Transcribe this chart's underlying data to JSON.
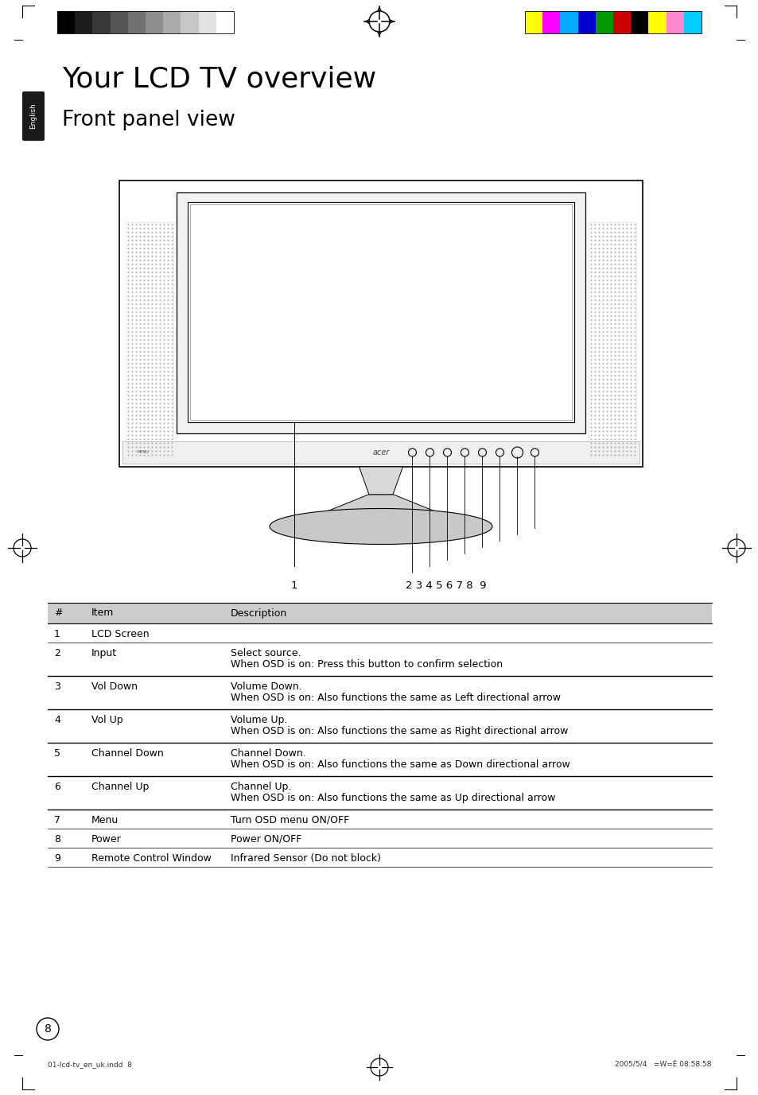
{
  "title": "Your LCD TV overview",
  "subtitle": "Front panel view",
  "bg_color": "#ffffff",
  "title_fontsize": 26,
  "subtitle_fontsize": 19,
  "table_header": [
    "#",
    "Item",
    "Description"
  ],
  "table_rows": [
    [
      "1",
      "LCD Screen",
      ""
    ],
    [
      "2",
      "Input",
      "Select source.\nWhen OSD is on: Press this button to confirm selection"
    ],
    [
      "3",
      "Vol Down",
      "Volume Down.\nWhen OSD is on: Also functions the same as Left directional arrow"
    ],
    [
      "4",
      "Vol Up",
      "Volume Up.\nWhen OSD is on: Also functions the same as Right directional arrow"
    ],
    [
      "5",
      "Channel Down",
      "Channel Down.\nWhen OSD is on: Also functions the same as Down directional arrow"
    ],
    [
      "6",
      "Channel Up",
      "Channel Up.\nWhen OSD is on: Also functions the same as Up directional arrow"
    ],
    [
      "7",
      "Menu",
      "Turn OSD menu ON/OFF"
    ],
    [
      "8",
      "Power",
      "Power ON/OFF"
    ],
    [
      "9",
      "Remote Control Window",
      "Infrared Sensor (Do not block)"
    ]
  ],
  "header_bg": "#cccccc",
  "color_bar_left": [
    "#000000",
    "#1c1c1c",
    "#393939",
    "#555555",
    "#717171",
    "#8d8d8d",
    "#aaaaaa",
    "#c6c6c6",
    "#e2e2e2",
    "#ffffff"
  ],
  "color_bar_right": [
    "#ffff00",
    "#ff00ff",
    "#00aaff",
    "#0000cc",
    "#009900",
    "#cc0000",
    "#000000",
    "#ffff00",
    "#ff88cc",
    "#00ccff"
  ],
  "page_number": "8",
  "footer_left": "01-lcd-tv_en_uk.indd  8",
  "footer_right": "2005/5/4   =W=É 08:58:58"
}
